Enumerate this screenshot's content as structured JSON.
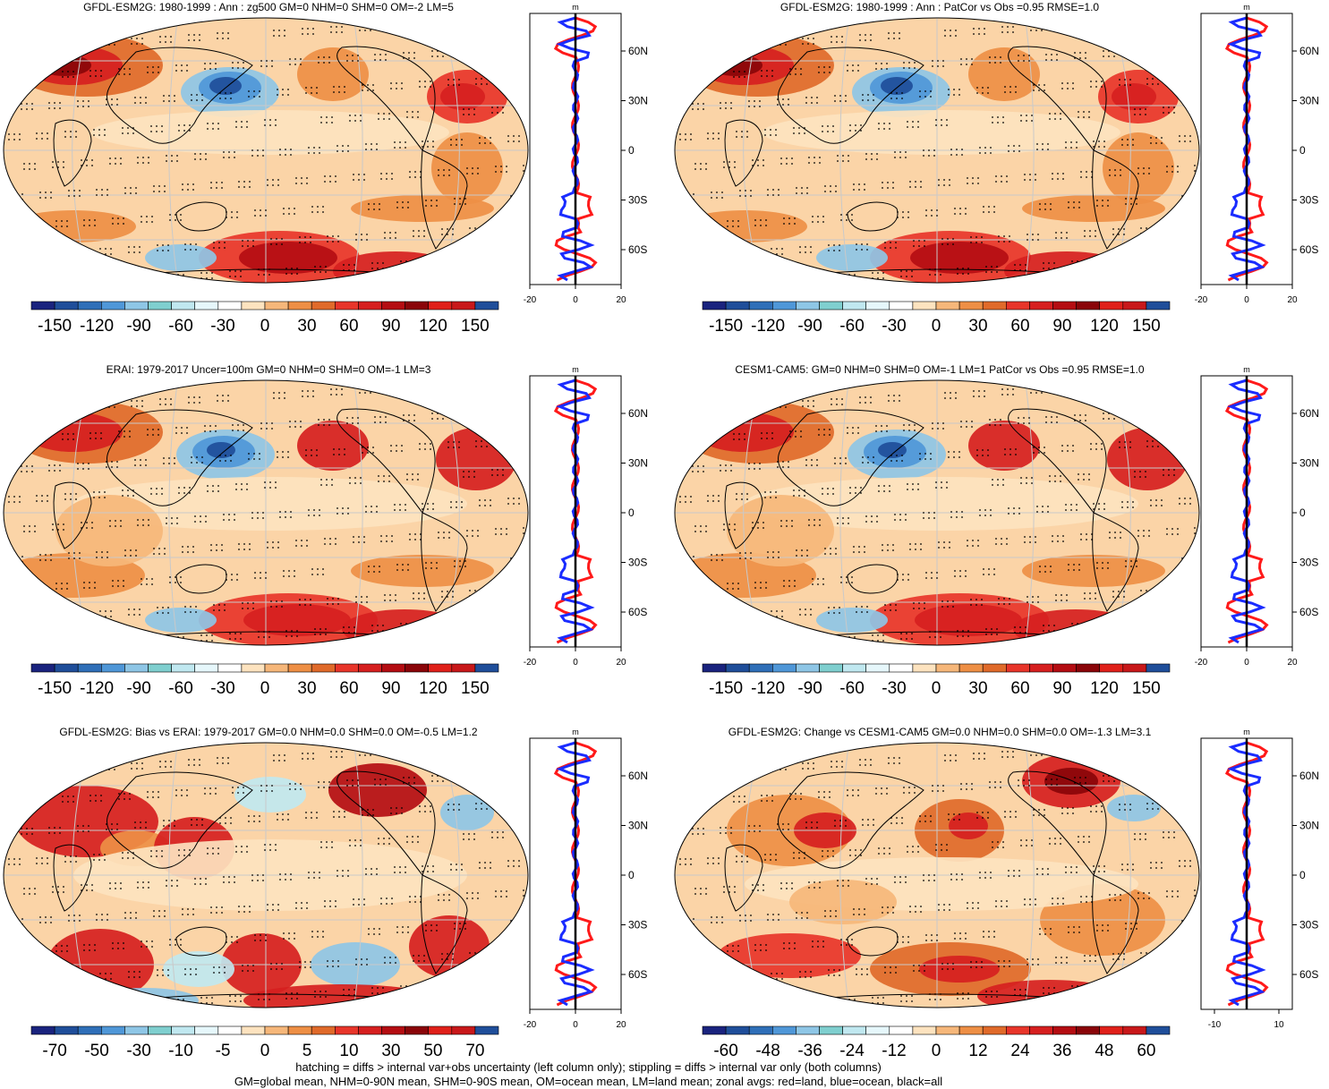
{
  "colors": {
    "colorbar": [
      "#1a237e",
      "#1f4e9a",
      "#2f6fb8",
      "#4f97d8",
      "#8ec6e6",
      "#7fcfcf",
      "#c0e8f0",
      "#e6f7fb",
      "#ffffff",
      "#fde3bf",
      "#f6b77a",
      "#ee8f45",
      "#e06a2a",
      "#e8352a",
      "#d61f1f",
      "#b40d12",
      "#8a0509",
      "#e0201a",
      "#c8181a",
      "#1f4e9a"
    ],
    "land_line": "#ff1a1a",
    "ocean_line": "#1a2cff",
    "all_line": "#000000",
    "coast": "#000000",
    "grid": "#c9c9c9"
  },
  "panels": [
    {
      "title": "GFDL-ESM2G: 1980-1999 : Ann : zg500 GM=0 NHM=0 SHM=0 OM=-2 LM=5",
      "colorbar_ticks": [
        "-150",
        "-120",
        "-90",
        "-60",
        "-30",
        "0",
        "30",
        "60",
        "90",
        "120",
        "150"
      ],
      "zonal_unit": "m",
      "zonal_xticks": [
        "-20",
        "0",
        "20"
      ],
      "zonal_yticks": [
        "60N",
        "30N",
        "0",
        "30S",
        "60S"
      ],
      "field": "a"
    },
    {
      "title": "GFDL-ESM2G: 1980-1999 : Ann : PatCor vs Obs =0.95 RMSE=1.0",
      "colorbar_ticks": [
        "-150",
        "-120",
        "-90",
        "-60",
        "-30",
        "0",
        "30",
        "60",
        "90",
        "120",
        "150"
      ],
      "zonal_unit": "m",
      "zonal_xticks": [
        "-20",
        "0",
        "20"
      ],
      "zonal_yticks": [
        "60N",
        "30N",
        "0",
        "30S",
        "60S"
      ],
      "field": "a"
    },
    {
      "title": "ERAI: 1979-2017 Uncer=100m GM=0 NHM=0 SHM=0 OM=-1 LM=3",
      "colorbar_ticks": [
        "-150",
        "-120",
        "-90",
        "-60",
        "-30",
        "0",
        "30",
        "60",
        "90",
        "120",
        "150"
      ],
      "zonal_unit": "m",
      "zonal_xticks": [
        "-20",
        "0",
        "20"
      ],
      "zonal_yticks": [
        "60N",
        "30N",
        "0",
        "30S",
        "60S"
      ],
      "field": "b"
    },
    {
      "title": "CESM1-CAM5: GM=0 NHM=0 SHM=0 OM=-1 LM=1 PatCor vs Obs =0.95 RMSE=1.0",
      "colorbar_ticks": [
        "-150",
        "-120",
        "-90",
        "-60",
        "-30",
        "0",
        "30",
        "60",
        "90",
        "120",
        "150"
      ],
      "zonal_unit": "m",
      "zonal_xticks": [
        "-20",
        "0",
        "20"
      ],
      "zonal_yticks": [
        "60N",
        "30N",
        "0",
        "30S",
        "60S"
      ],
      "field": "b"
    },
    {
      "title": "GFDL-ESM2G: Bias vs ERAI: 1979-2017 GM=0.0 NHM=0.0 SHM=0.0 OM=-0.5 LM=1.2",
      "colorbar_ticks": [
        "-70",
        "-50",
        "-30",
        "-10",
        "-5",
        "0",
        "5",
        "10",
        "30",
        "50",
        "70"
      ],
      "zonal_unit": "m",
      "zonal_xticks": [
        "-20",
        "0",
        "20"
      ],
      "zonal_yticks": [
        "60N",
        "30N",
        "0",
        "30S",
        "60S"
      ],
      "field": "c"
    },
    {
      "title": "GFDL-ESM2G: Change vs CESM1-CAM5 GM=0.0 NHM=0.0 SHM=0.0 OM=-1.3 LM=3.1",
      "colorbar_ticks": [
        "-60",
        "-48",
        "-36",
        "-24",
        "-12",
        "0",
        "12",
        "24",
        "36",
        "48",
        "60"
      ],
      "zonal_unit": "m",
      "zonal_xticks": [
        "-10",
        "10"
      ],
      "zonal_yticks": [
        "60N",
        "30N",
        "0",
        "30S",
        "60S"
      ],
      "field": "d"
    }
  ],
  "footer": {
    "line1": "hatching = diffs > internal var+obs uncertainty (left column only); stippling = diffs > internal var only (both columns)",
    "line2": "GM=global mean, NHM=0-90N mean, SHM=0-90S mean, OM=ocean mean, LM=land mean; zonal avgs: red=land, blue=ocean, black=all"
  },
  "chart_data": [
    {
      "type": "heatmap",
      "title": "GFDL-ESM2G: 1980-1999 : Ann : zg500 GM=0 NHM=0 SHM=0 OM=-2 LM=5",
      "projection": "Robinson",
      "colorbar": [
        -150,
        -120,
        -90,
        -60,
        -30,
        0,
        30,
        60,
        90,
        120,
        150
      ],
      "zonal_mean": {
        "xlim": [
          -20,
          20
        ],
        "ylim_lat": [
          -80,
          80
        ],
        "land": "red",
        "ocean": "blue",
        "all": "black"
      }
    },
    {
      "type": "heatmap",
      "title": "GFDL-ESM2G: 1980-1999 : Ann : PatCor vs Obs =0.95 RMSE=1.0",
      "projection": "Robinson",
      "colorbar": [
        -150,
        -120,
        -90,
        -60,
        -30,
        0,
        30,
        60,
        90,
        120,
        150
      ],
      "zonal_mean": {
        "xlim": [
          -20,
          20
        ],
        "ylim_lat": [
          -80,
          80
        ]
      }
    },
    {
      "type": "heatmap",
      "title": "ERAI: 1979-2017 Uncer=100m GM=0 NHM=0 SHM=0 OM=-1 LM=3",
      "projection": "Robinson",
      "colorbar": [
        -150,
        -120,
        -90,
        -60,
        -30,
        0,
        30,
        60,
        90,
        120,
        150
      ],
      "zonal_mean": {
        "xlim": [
          -20,
          20
        ],
        "ylim_lat": [
          -80,
          80
        ]
      }
    },
    {
      "type": "heatmap",
      "title": "CESM1-CAM5: GM=0 NHM=0 SHM=0 OM=-1 LM=1 PatCor vs Obs =0.95 RMSE=1.0",
      "projection": "Robinson",
      "colorbar": [
        -150,
        -120,
        -90,
        -60,
        -30,
        0,
        30,
        60,
        90,
        120,
        150
      ],
      "zonal_mean": {
        "xlim": [
          -20,
          20
        ],
        "ylim_lat": [
          -80,
          80
        ]
      }
    },
    {
      "type": "heatmap",
      "title": "GFDL-ESM2G: Bias vs ERAI: 1979-2017 GM=0.0 NHM=0.0 SHM=0.0 OM=-0.5 LM=1.2",
      "projection": "Robinson",
      "colorbar": [
        -70,
        -50,
        -30,
        -10,
        -5,
        0,
        5,
        10,
        30,
        50,
        70
      ],
      "zonal_mean": {
        "xlim": [
          -20,
          20
        ],
        "ylim_lat": [
          -80,
          80
        ]
      }
    },
    {
      "type": "heatmap",
      "title": "GFDL-ESM2G: Change vs CESM1-CAM5 GM=0.0 NHM=0.0 SHM=0.0 OM=-1.3 LM=3.1",
      "projection": "Robinson",
      "colorbar": [
        -60,
        -48,
        -36,
        -24,
        -12,
        0,
        12,
        24,
        36,
        48,
        60
      ],
      "zonal_mean": {
        "xlim": [
          -15,
          15
        ],
        "ylim_lat": [
          -80,
          80
        ]
      }
    }
  ]
}
